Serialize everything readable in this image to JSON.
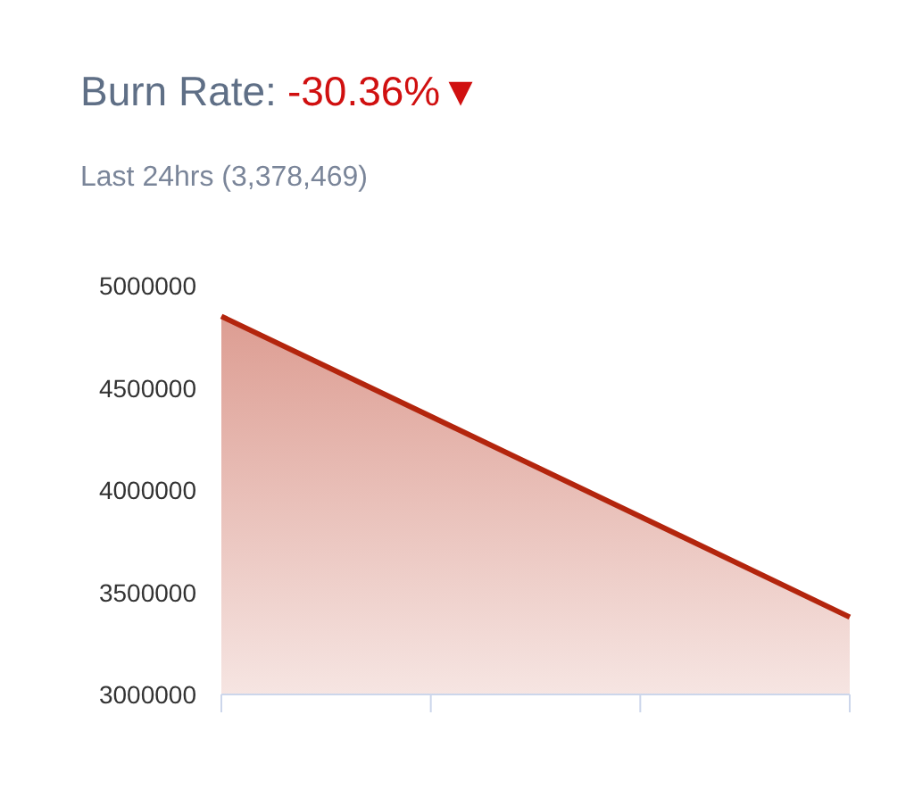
{
  "chart_data": {
    "type": "area",
    "title": "Burn Rate:",
    "subtitle": "Last 24hrs (3,378,469)",
    "annotations": [
      "-30.36%▼"
    ],
    "categories": [
      null,
      null,
      null,
      null
    ],
    "series": [
      {
        "color": "#b3250d",
        "values": [
          4850000,
          4360000,
          3870000,
          3378469
        ]
      }
    ],
    "ylim": [
      3000000,
      5000000
    ],
    "yticks": [
      3000000,
      3500000,
      4000000,
      4500000,
      5000000
    ],
    "grid": false
  }
}
